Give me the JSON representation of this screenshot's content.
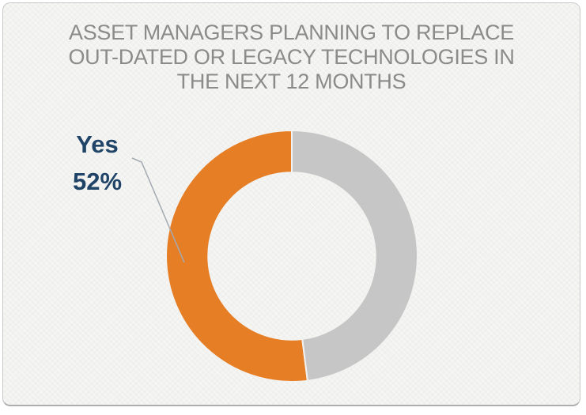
{
  "chart": {
    "title_lines": [
      "ASSET MANAGERS PLANNING TO REPLACE",
      "OUT-DATED OR LEGACY TECHNOLOGIES IN",
      "THE NEXT 12 MONTHS"
    ]
  },
  "callout": {
    "label": "Yes",
    "value": "52%"
  },
  "chart_data": {
    "type": "pie",
    "subtype": "donut",
    "title": "ASSET MANAGERS PLANNING TO REPLACE OUT-DATED OR LEGACY TECHNOLOGIES IN THE NEXT 12 MONTHS",
    "slices": [
      {
        "label": "Yes",
        "value": 52,
        "color": "#E67E26",
        "data_label": "Yes 52%"
      },
      {
        "label": "",
        "value": 48,
        "color": "#C6C6C6",
        "data_label": ""
      }
    ],
    "hole_ratio": 0.665,
    "legend": "none",
    "start_position": "12 o'clock",
    "labeled_slice_side": "left (Yes slice sweeps counterclockwise from top)",
    "annotations": [
      {
        "text": "Yes 52%",
        "color": "#1F4468",
        "target": "Yes slice",
        "leader_line": true
      }
    ],
    "colors": {
      "accent_orange": "#E67E26",
      "neutral_gray": "#C6C6C6",
      "label_navy": "#1F4468",
      "title_gray": "#8B8B8B",
      "background": "#F2F2F0",
      "leader_line": "#A3AAB2",
      "frame_border": "#C9C9C9"
    }
  }
}
